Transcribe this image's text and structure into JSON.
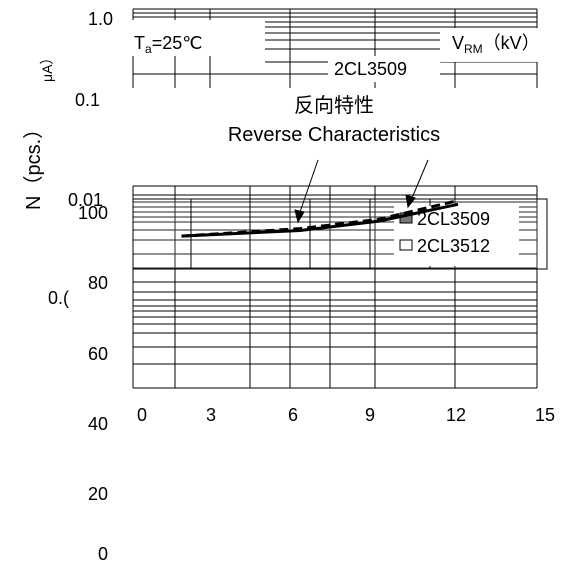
{
  "chart_data": {
    "type": "line",
    "title_cn": "反向特性",
    "title_en": "Reverse Characteristics",
    "ylabel_left": "N（pcs.）",
    "ylabel_left_faded": "μA）",
    "xlabel": "V",
    "xlabel_sub": "RM",
    "xlabel_unit": "（kV）",
    "ta_text": "T",
    "ta_sub": "a",
    "ta_value": "=25℃",
    "callout_label": "2CL3509",
    "yticks_top": [
      "1.0",
      "0.1",
      "0.01",
      "0.("
    ],
    "yticks": [
      "100",
      "80",
      "60",
      "40",
      "20",
      "0"
    ],
    "xticks": [
      "0",
      "3",
      "6",
      "9",
      "12",
      "15"
    ],
    "xlim": [
      0,
      15
    ],
    "legend": [
      {
        "label": "2CL3509",
        "swatch": "#777777"
      },
      {
        "label": "2CL3512",
        "swatch": "#ffffff"
      }
    ],
    "series": [
      {
        "name": "2CL3509",
        "style": "dashed",
        "x": [
          1.5,
          6,
          9,
          12
        ],
        "y": [
          92.5,
          94.5,
          97,
          102
        ]
      },
      {
        "name": "2CL3512",
        "style": "solid",
        "x": [
          1.5,
          6,
          9,
          12
        ],
        "y": [
          92.5,
          94,
          96.5,
          101
        ]
      }
    ]
  }
}
